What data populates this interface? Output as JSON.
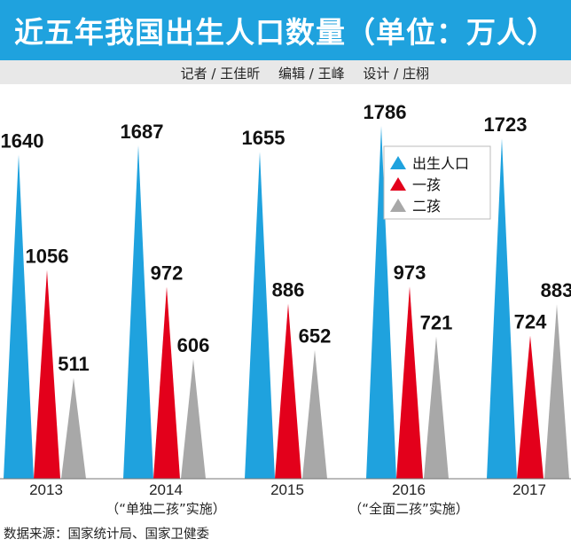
{
  "title": "近五年我国出生人口数量（单位：万人）",
  "credits": [
    "记者 / 王佳昕",
    "编辑 / 王峰",
    "设计 / 庄栩"
  ],
  "source": "数据来源：国家统计局、国家卫健委",
  "colors": {
    "title_bg": "#1fa2de",
    "births": "#1fa2de",
    "first": "#e3001b",
    "second": "#a8a8a8"
  },
  "chart_data": {
    "type": "bar",
    "title": "近五年我国出生人口数量（单位：万人）",
    "categories": [
      "2013",
      "2014",
      "2015",
      "2016",
      "2017"
    ],
    "notes": [
      "",
      "（“单独二孩”实施）",
      "",
      "（“全面二孩”实施）",
      ""
    ],
    "series": [
      {
        "name": "出生人口",
        "values": [
          1640,
          1687,
          1655,
          1786,
          1723
        ]
      },
      {
        "name": "一孩",
        "values": [
          1056,
          972,
          886,
          973,
          724
        ]
      },
      {
        "name": "二孩",
        "values": [
          511,
          606,
          652,
          721,
          883
        ]
      }
    ],
    "legend": {
      "position": "top-right",
      "items": [
        "出生人口",
        "一孩",
        "二孩"
      ]
    },
    "xlabel": "",
    "ylabel": "万人",
    "ylim": [
      0,
      1786
    ]
  }
}
